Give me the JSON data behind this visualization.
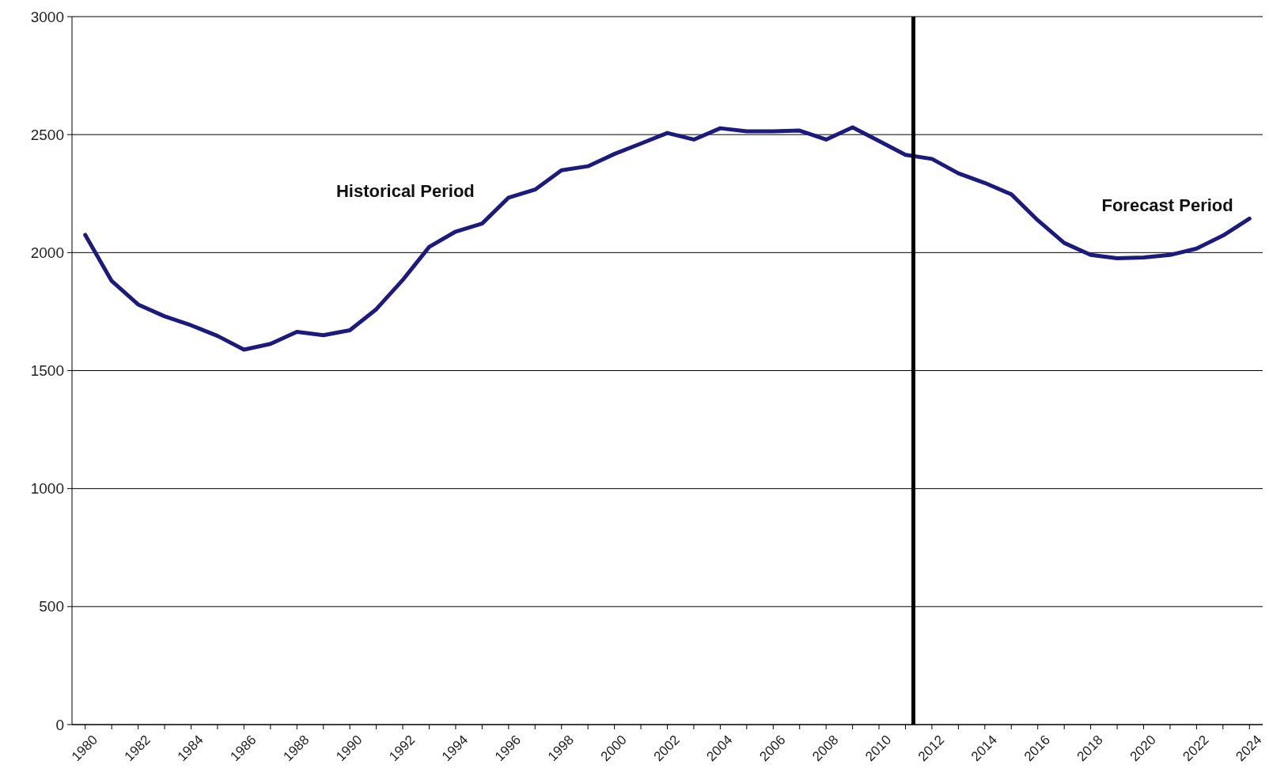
{
  "chart_data": {
    "type": "line",
    "x": [
      1980,
      1981,
      1982,
      1983,
      1984,
      1985,
      1986,
      1987,
      1988,
      1989,
      1990,
      1991,
      1992,
      1993,
      1994,
      1995,
      1996,
      1997,
      1998,
      1999,
      2000,
      2001,
      2002,
      2003,
      2004,
      2005,
      2006,
      2007,
      2008,
      2009,
      2010,
      2011,
      2012,
      2013,
      2014,
      2015,
      2016,
      2017,
      2018,
      2019,
      2020,
      2021,
      2022,
      2023,
      2024
    ],
    "series": [
      {
        "color": "#1c1a7c",
        "values": [
          2075,
          1880,
          1780,
          1730,
          1692,
          1647,
          1589,
          1613,
          1664,
          1650,
          1671,
          1760,
          1884,
          2024,
          2089,
          2123,
          2233,
          2267,
          2349,
          2366,
          2418,
          2462,
          2507,
          2479,
          2527,
          2514,
          2514,
          2517,
          2479,
          2531,
          2473,
          2414,
          2397,
          2336,
          2295,
          2247,
          2137,
          2041,
          1990,
          1976,
          1979,
          1990,
          2017,
          2072,
          2144
        ]
      }
    ],
    "xlim": [
      1979.5,
      2024.5
    ],
    "xticks": [
      1980,
      1982,
      1984,
      1986,
      1988,
      1990,
      1992,
      1994,
      1996,
      1998,
      2000,
      2002,
      2004,
      2006,
      2008,
      2010,
      2012,
      2014,
      2016,
      2018,
      2020,
      2022,
      2024
    ],
    "ylim": [
      0,
      3000
    ],
    "yticks": [
      0,
      500,
      1000,
      1500,
      2000,
      2500,
      3000
    ],
    "grid": "y",
    "marker": "none",
    "line_style": "solid",
    "ref_lines": [
      {
        "axis": "x",
        "value": 2011.3,
        "color": "#000000"
      }
    ],
    "annotations": [
      "Historical Period",
      "Forecast Period"
    ]
  }
}
